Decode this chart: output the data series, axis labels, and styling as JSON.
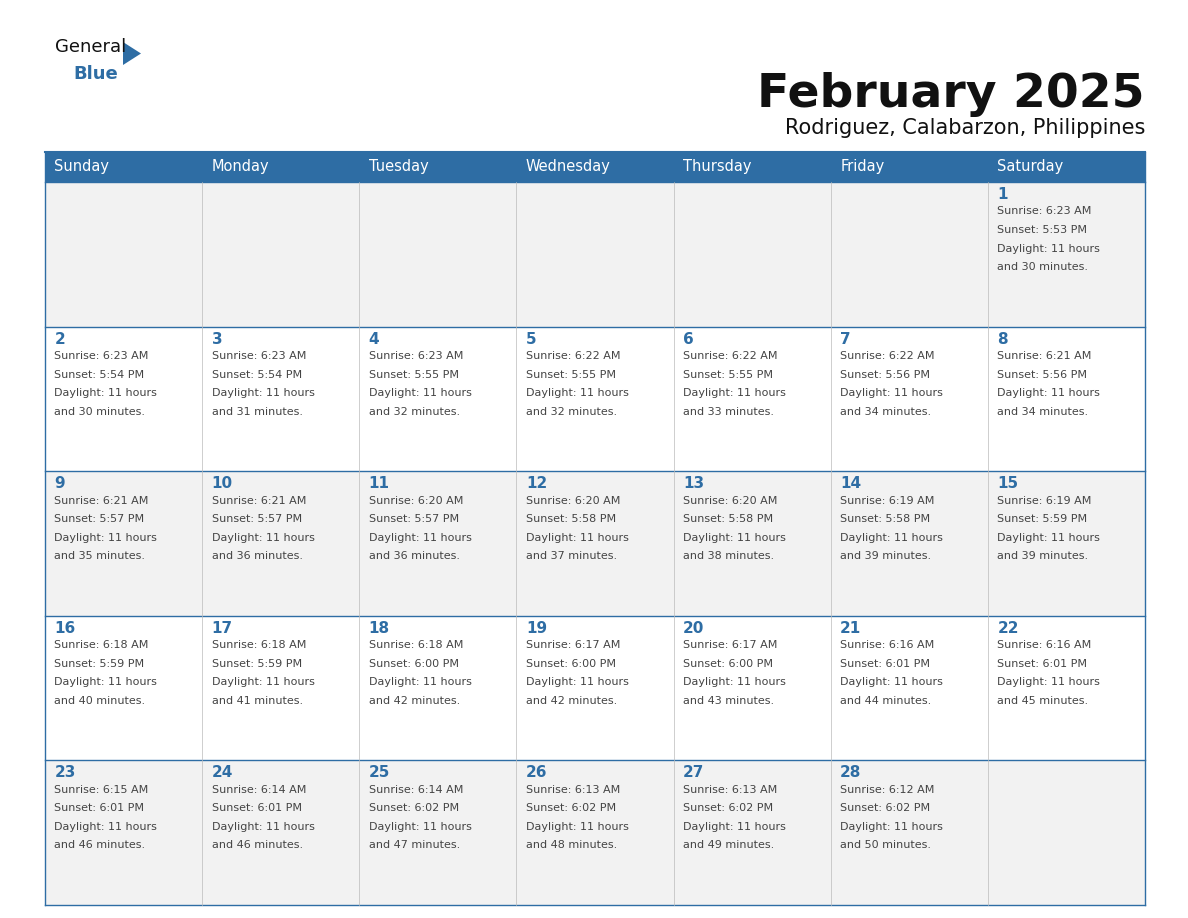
{
  "title": "February 2025",
  "subtitle": "Rodriguez, Calabarzon, Philippines",
  "days_of_week": [
    "Sunday",
    "Monday",
    "Tuesday",
    "Wednesday",
    "Thursday",
    "Friday",
    "Saturday"
  ],
  "header_bg": "#2E6DA4",
  "header_text": "#FFFFFF",
  "row_bg_odd": "#F2F2F2",
  "row_bg_even": "#FFFFFF",
  "cell_border_color": "#2E6DA4",
  "day_number_color": "#2E6DA4",
  "text_color": "#444444",
  "title_color": "#111111",
  "subtitle_color": "#111111",
  "logo_general_color": "#111111",
  "logo_blue_color": "#2E6DA4",
  "calendar_data": [
    [
      {
        "day": null,
        "sunrise": null,
        "sunset": null,
        "daylight": null
      },
      {
        "day": null,
        "sunrise": null,
        "sunset": null,
        "daylight": null
      },
      {
        "day": null,
        "sunrise": null,
        "sunset": null,
        "daylight": null
      },
      {
        "day": null,
        "sunrise": null,
        "sunset": null,
        "daylight": null
      },
      {
        "day": null,
        "sunrise": null,
        "sunset": null,
        "daylight": null
      },
      {
        "day": null,
        "sunrise": null,
        "sunset": null,
        "daylight": null
      },
      {
        "day": 1,
        "sunrise": "6:23 AM",
        "sunset": "5:53 PM",
        "daylight": "11 hours and 30 minutes."
      }
    ],
    [
      {
        "day": 2,
        "sunrise": "6:23 AM",
        "sunset": "5:54 PM",
        "daylight": "11 hours and 30 minutes."
      },
      {
        "day": 3,
        "sunrise": "6:23 AM",
        "sunset": "5:54 PM",
        "daylight": "11 hours and 31 minutes."
      },
      {
        "day": 4,
        "sunrise": "6:23 AM",
        "sunset": "5:55 PM",
        "daylight": "11 hours and 32 minutes."
      },
      {
        "day": 5,
        "sunrise": "6:22 AM",
        "sunset": "5:55 PM",
        "daylight": "11 hours and 32 minutes."
      },
      {
        "day": 6,
        "sunrise": "6:22 AM",
        "sunset": "5:55 PM",
        "daylight": "11 hours and 33 minutes."
      },
      {
        "day": 7,
        "sunrise": "6:22 AM",
        "sunset": "5:56 PM",
        "daylight": "11 hours and 34 minutes."
      },
      {
        "day": 8,
        "sunrise": "6:21 AM",
        "sunset": "5:56 PM",
        "daylight": "11 hours and 34 minutes."
      }
    ],
    [
      {
        "day": 9,
        "sunrise": "6:21 AM",
        "sunset": "5:57 PM",
        "daylight": "11 hours and 35 minutes."
      },
      {
        "day": 10,
        "sunrise": "6:21 AM",
        "sunset": "5:57 PM",
        "daylight": "11 hours and 36 minutes."
      },
      {
        "day": 11,
        "sunrise": "6:20 AM",
        "sunset": "5:57 PM",
        "daylight": "11 hours and 36 minutes."
      },
      {
        "day": 12,
        "sunrise": "6:20 AM",
        "sunset": "5:58 PM",
        "daylight": "11 hours and 37 minutes."
      },
      {
        "day": 13,
        "sunrise": "6:20 AM",
        "sunset": "5:58 PM",
        "daylight": "11 hours and 38 minutes."
      },
      {
        "day": 14,
        "sunrise": "6:19 AM",
        "sunset": "5:58 PM",
        "daylight": "11 hours and 39 minutes."
      },
      {
        "day": 15,
        "sunrise": "6:19 AM",
        "sunset": "5:59 PM",
        "daylight": "11 hours and 39 minutes."
      }
    ],
    [
      {
        "day": 16,
        "sunrise": "6:18 AM",
        "sunset": "5:59 PM",
        "daylight": "11 hours and 40 minutes."
      },
      {
        "day": 17,
        "sunrise": "6:18 AM",
        "sunset": "5:59 PM",
        "daylight": "11 hours and 41 minutes."
      },
      {
        "day": 18,
        "sunrise": "6:18 AM",
        "sunset": "6:00 PM",
        "daylight": "11 hours and 42 minutes."
      },
      {
        "day": 19,
        "sunrise": "6:17 AM",
        "sunset": "6:00 PM",
        "daylight": "11 hours and 42 minutes."
      },
      {
        "day": 20,
        "sunrise": "6:17 AM",
        "sunset": "6:00 PM",
        "daylight": "11 hours and 43 minutes."
      },
      {
        "day": 21,
        "sunrise": "6:16 AM",
        "sunset": "6:01 PM",
        "daylight": "11 hours and 44 minutes."
      },
      {
        "day": 22,
        "sunrise": "6:16 AM",
        "sunset": "6:01 PM",
        "daylight": "11 hours and 45 minutes."
      }
    ],
    [
      {
        "day": 23,
        "sunrise": "6:15 AM",
        "sunset": "6:01 PM",
        "daylight": "11 hours and 46 minutes."
      },
      {
        "day": 24,
        "sunrise": "6:14 AM",
        "sunset": "6:01 PM",
        "daylight": "11 hours and 46 minutes."
      },
      {
        "day": 25,
        "sunrise": "6:14 AM",
        "sunset": "6:02 PM",
        "daylight": "11 hours and 47 minutes."
      },
      {
        "day": 26,
        "sunrise": "6:13 AM",
        "sunset": "6:02 PM",
        "daylight": "11 hours and 48 minutes."
      },
      {
        "day": 27,
        "sunrise": "6:13 AM",
        "sunset": "6:02 PM",
        "daylight": "11 hours and 49 minutes."
      },
      {
        "day": 28,
        "sunrise": "6:12 AM",
        "sunset": "6:02 PM",
        "daylight": "11 hours and 50 minutes."
      },
      {
        "day": null,
        "sunrise": null,
        "sunset": null,
        "daylight": null
      }
    ]
  ]
}
